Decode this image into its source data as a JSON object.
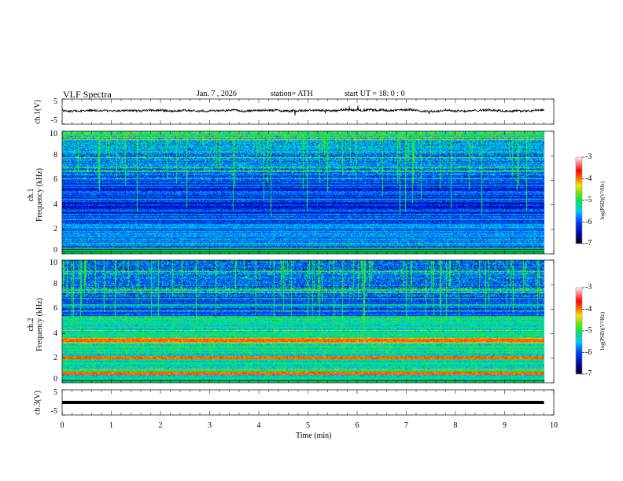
{
  "header": {
    "title": "VLF  Spectra",
    "date": "Jan.  7  , 2026",
    "station": "station= ATH",
    "start_ut": "start  UT  =    18: 0   : 0"
  },
  "chart_data": [
    {
      "type": "line",
      "name": "ch1 waveform",
      "ylabel": "ch.1(V)",
      "ylim": [
        -5,
        5
      ],
      "yticks": [
        "5",
        "-5"
      ],
      "baseline": 0.5
    },
    {
      "type": "heatmap",
      "name": "ch1 spectrogram",
      "ylabel": "ch.1\nFrequency  (kHz)",
      "ylabel_top": "ch.1",
      "ylabel_bottom": "Frequency  (kHz)",
      "ylim": [
        0,
        10
      ],
      "yticks": [
        "0",
        "2",
        "4",
        "6",
        "8",
        "10"
      ],
      "colorbar": {
        "label": "log(PSD)(V²/Hz)",
        "range": [
          -7,
          -3
        ],
        "ticks": [
          "-3",
          "-4",
          "-5",
          "-6",
          "-7"
        ]
      }
    },
    {
      "type": "heatmap",
      "name": "ch2 spectrogram",
      "ylabel_top": "ch.2",
      "ylabel_bottom": "Frequency  (kHz)",
      "ylim": [
        0,
        10
      ],
      "yticks": [
        "0",
        "2",
        "4",
        "6",
        "8",
        "10"
      ],
      "colorbar": {
        "label": "log(PSD)(V²/Hz)",
        "range": [
          -7,
          -3
        ],
        "ticks": [
          "-3",
          "-4",
          "-5",
          "-6",
          "-7"
        ]
      }
    },
    {
      "type": "line",
      "name": "ch3 waveform",
      "ylabel": "ch.3(V)",
      "ylim": [
        -5,
        5
      ],
      "yticks": [
        "5",
        "-5"
      ],
      "baseline": 0
    }
  ],
  "xaxis": {
    "label": "Time  (min)",
    "xlim": [
      0,
      10
    ],
    "ticks": [
      "0",
      "1",
      "2",
      "3",
      "4",
      "5",
      "6",
      "7",
      "8",
      "9",
      "10"
    ],
    "data_end": 9.8
  },
  "colors": {
    "waveform": "#000000"
  }
}
